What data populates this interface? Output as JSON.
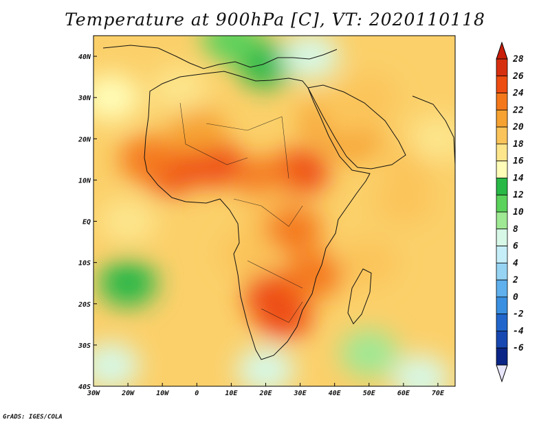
{
  "title": "Temperature at 900hPa [C], VT: 2020110118",
  "footer": "GrADS: IGES/COLA",
  "x_ticks": [
    "30W",
    "20W",
    "10W",
    "0",
    "10E",
    "20E",
    "30E",
    "40E",
    "50E",
    "60E",
    "70E"
  ],
  "y_ticks": [
    "40N",
    "30N",
    "20N",
    "10N",
    "EQ",
    "10S",
    "20S",
    "30S",
    "40S"
  ],
  "colorbar": {
    "labels": [
      "28",
      "26",
      "24",
      "22",
      "20",
      "18",
      "16",
      "14",
      "12",
      "10",
      "8",
      "6",
      "4",
      "2",
      "0",
      "-2",
      "-4",
      "-6"
    ],
    "colors": [
      "#d62f0f",
      "#ee4d12",
      "#f4781a",
      "#f6a232",
      "#fbc45a",
      "#fde58c",
      "#fffdb8",
      "#28b846",
      "#5bd25b",
      "#9fe894",
      "#d7f8e6",
      "#c6eef8",
      "#97d4f4",
      "#5fb0ec",
      "#3a8fe0",
      "#2266cc",
      "#1747b0",
      "#0a2586"
    ],
    "over_color": "#c81e0a",
    "under_color": "#e8e6fa"
  },
  "chart_data": {
    "type": "heatmap",
    "title": "Temperature at 900hPa [C], VT: 2020110118",
    "variable": "Temperature at 900hPa",
    "units": "C",
    "valid_time": "2020110118",
    "lon_range": [
      -30,
      75
    ],
    "lat_range": [
      -40,
      45
    ],
    "color_scale_range": [
      -6,
      28
    ],
    "contour_levels": [
      -6,
      -4,
      -2,
      0,
      2,
      4,
      6,
      8,
      10,
      12,
      14,
      16,
      18,
      20,
      22,
      24,
      26,
      28
    ],
    "blobs": [
      {
        "lon": 22,
        "lat": -18,
        "value": 27
      },
      {
        "lon": 25,
        "lat": -23,
        "value": 27
      },
      {
        "lon": 34,
        "lat": -13,
        "value": 25
      },
      {
        "lon": 30,
        "lat": 12,
        "value": 27
      },
      {
        "lon": 20,
        "lat": 10,
        "value": 25
      },
      {
        "lon": 5,
        "lat": 14,
        "value": 26
      },
      {
        "lon": -8,
        "lat": 12,
        "value": 27
      },
      {
        "lon": -14,
        "lat": 15,
        "value": 24
      },
      {
        "lon": 38,
        "lat": 24,
        "value": 23
      },
      {
        "lon": 45,
        "lat": 20,
        "value": 22
      },
      {
        "lon": 44,
        "lat": 26,
        "value": 21
      },
      {
        "lon": 50,
        "lat": 30,
        "value": 20
      },
      {
        "lon": 0,
        "lat": 22,
        "value": 22
      },
      {
        "lon": 22,
        "lat": 2,
        "value": 21
      },
      {
        "lon": 28,
        "lat": -2,
        "value": 24
      },
      {
        "lon": 15,
        "lat": -8,
        "value": 20
      },
      {
        "lon": -5,
        "lat": 32,
        "value": 18
      },
      {
        "lon": 20,
        "lat": 38,
        "value": 14
      },
      {
        "lon": 33,
        "lat": 40,
        "value": 9
      },
      {
        "lon": 10,
        "lat": 44,
        "value": 12
      },
      {
        "lon": 50,
        "lat": -10,
        "value": 21
      },
      {
        "lon": 60,
        "lat": 5,
        "value": 20
      },
      {
        "lon": 62,
        "lat": 15,
        "value": 20
      },
      {
        "lon": 70,
        "lat": 20,
        "value": 19
      },
      {
        "lon": -20,
        "lat": 0,
        "value": 19
      },
      {
        "lon": -20,
        "lat": -15,
        "value": 15
      },
      {
        "lon": -25,
        "lat": 30,
        "value": 17
      },
      {
        "lon": 20,
        "lat": -36,
        "value": 9
      },
      {
        "lon": 50,
        "lat": -32,
        "value": 11
      },
      {
        "lon": 65,
        "lat": -38,
        "value": 9
      },
      {
        "lon": -25,
        "lat": -35,
        "value": 8
      }
    ]
  }
}
